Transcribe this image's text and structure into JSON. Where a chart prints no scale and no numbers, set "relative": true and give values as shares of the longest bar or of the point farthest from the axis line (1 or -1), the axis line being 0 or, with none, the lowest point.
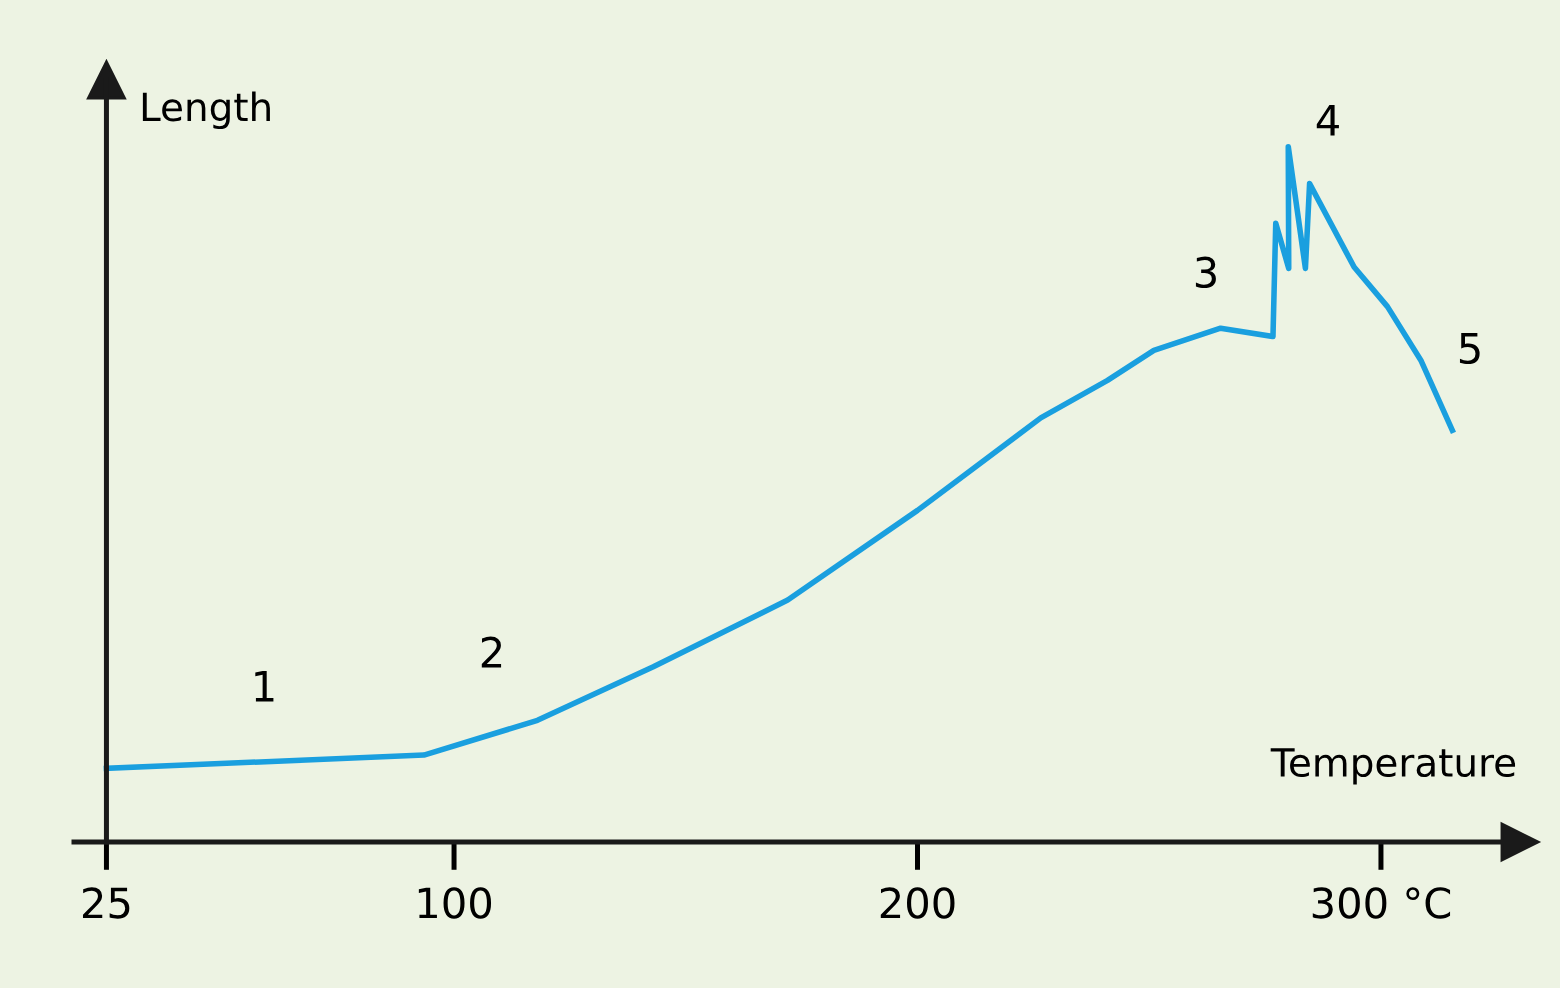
{
  "chart_data": {
    "type": "line",
    "relative": true,
    "xlabel": "Temperature",
    "ylabel": "Length",
    "x": [
      25,
      93.5,
      118,
      143,
      172,
      200,
      226.6,
      241,
      251,
      265.4,
      276.7,
      277.3,
      280.1,
      280.0,
      283.7,
      284.6,
      294.2,
      301.4,
      308.6,
      315.4
    ],
    "series": [
      {
        "color": "#1a9fdf",
        "values": [
          0.106,
          0.125,
          0.175,
          0.252,
          0.348,
          0.477,
          0.61,
          0.664,
          0.707,
          0.739,
          0.727,
          0.89,
          0.825,
          1,
          0.825,
          0.947,
          0.827,
          0.77,
          0.693,
          0.592
        ]
      }
    ],
    "xlim": [
      18,
      330
    ],
    "xticks": [
      25,
      100,
      200,
      {
        "value": 300,
        "label": "300 °C"
      }
    ],
    "annotations": [
      "1",
      "2",
      "3",
      "4",
      "5"
    ],
    "legend": false,
    "marker": "none",
    "line_style": "solid"
  }
}
